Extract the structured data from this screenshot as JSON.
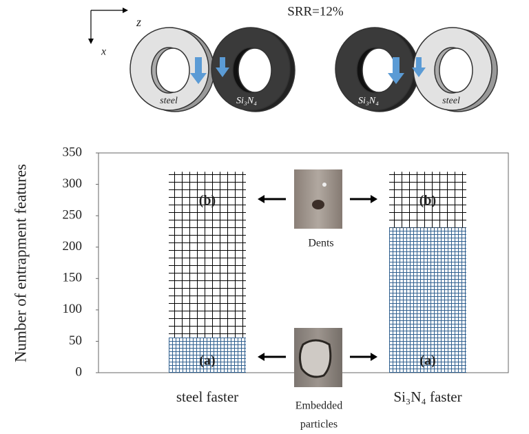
{
  "chart_data": {
    "type": "stacked_bar",
    "y_label": "Number of entrapment features",
    "categories": [
      "steel faster",
      "Si₃N₄ faster"
    ],
    "series": [
      {
        "name": "(a)",
        "color": "#2f5f8f",
        "values": [
          56,
          231
        ]
      },
      {
        "name": "(b)",
        "color": "#000000",
        "values": [
          264,
          89
        ]
      }
    ],
    "ylim": [
      0,
      350
    ],
    "yticks": [
      0,
      50,
      100,
      150,
      200,
      250,
      300,
      350
    ],
    "annotations": {
      "srr": "SRR=12%",
      "axis_z": "z",
      "axis_x": "x",
      "left_pair": [
        "steel",
        "Si₃N₄"
      ],
      "right_pair": [
        "Si₃N₄",
        "steel"
      ],
      "dents": "Dents",
      "embedded": [
        "Embedded",
        "particles"
      ]
    }
  }
}
